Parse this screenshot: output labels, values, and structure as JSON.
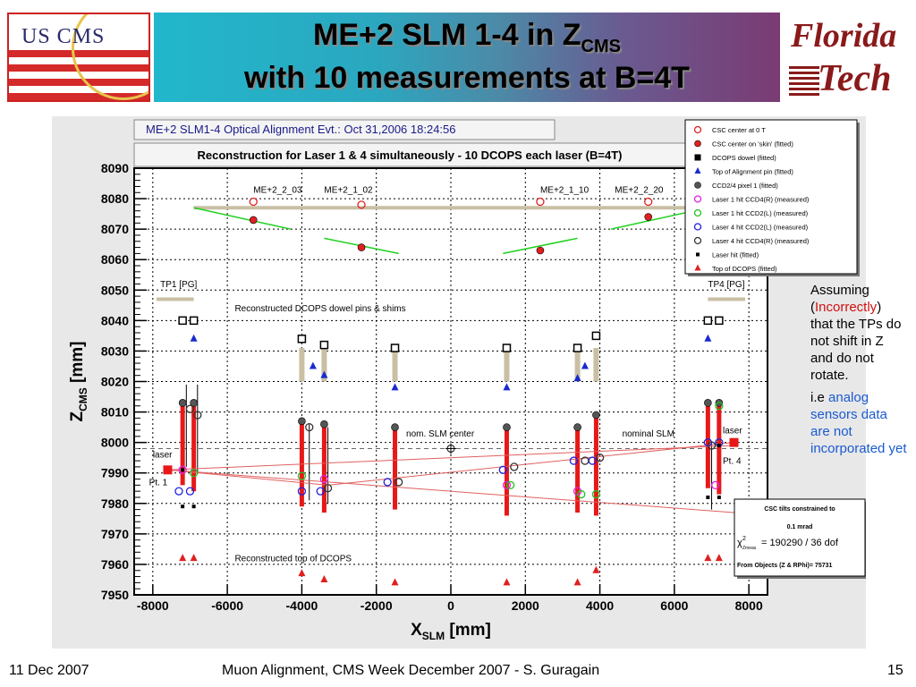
{
  "slide": {
    "title_main": "ME+2 SLM 1-4 in Z",
    "title_sub": "CMS",
    "title_line2": "with 10 measurements at B=4T",
    "logo_left_text": "US CMS",
    "logo_right_line1": "Florida",
    "logo_right_line2": "Tech",
    "side_note": {
      "line1": "Assuming",
      "paren_open": "(",
      "incorrectly": "Incorrectly",
      "paren_close": ")",
      "line3": "that the TPs do not shift in Z and do not rotate.",
      "ie": "i.e ",
      "analog": "analog sensors data are not incorporated yet"
    },
    "footer": {
      "date": "11 Dec 2007",
      "center": "Muon Alignment, CMS Week December 2007  - S. Guragain",
      "page": "15"
    }
  },
  "chart_data": {
    "type": "scatter",
    "header": "ME+2 SLM1-4 Optical Alignment Evt.: Oct 31,2006 18:24:56",
    "title": "Reconstruction for Laser 1 & 4 simultaneously - 10 DCOPS each laser (B=4T)",
    "xlabel": "X",
    "xlabel_sub": "SLM",
    "xlabel_unit": " [mm]",
    "ylabel": "Z",
    "ylabel_sub": "CMS",
    "ylabel_unit": " [mm]",
    "xlim": [
      -8500,
      8500
    ],
    "ylim": [
      7950,
      8090
    ],
    "xticks": [
      -8000,
      -6000,
      -4000,
      -2000,
      0,
      2000,
      4000,
      6000,
      8000
    ],
    "yticks": [
      7950,
      7960,
      7970,
      7980,
      7990,
      8000,
      8010,
      8020,
      8030,
      8040,
      8050,
      8060,
      8070,
      8080,
      8090
    ],
    "grid": true,
    "legend_position": "top-right",
    "legend": [
      {
        "label": "CSC center at 0 T",
        "marker": "open-circle",
        "color": "#e02020"
      },
      {
        "label": "CSC center on 'skin' (fitted)",
        "marker": "filled-circle",
        "color": "#e02020"
      },
      {
        "label": "DCOPS dowel (fitted)",
        "marker": "filled-square",
        "color": "#000000"
      },
      {
        "label": "Top of Alignment pin (fitted)",
        "marker": "triangle",
        "color": "#1a2ad0"
      },
      {
        "label": "CCD2/4 pixel 1 (fitted)",
        "marker": "filled-circle",
        "color": "#555555"
      },
      {
        "label": "Laser 1 hit CCD4(R) (measured)",
        "marker": "open-circle",
        "color": "#e020e0"
      },
      {
        "label": "Laser 1 hit CCD2(L) (measured)",
        "marker": "open-circle",
        "color": "#20c020"
      },
      {
        "label": "Laser 4 hit CCD2(L) (measured)",
        "marker": "open-circle",
        "color": "#2020e0"
      },
      {
        "label": "Laser 4 hit CCD4(R) (measured)",
        "marker": "open-circle",
        "color": "#333333"
      },
      {
        "label": "Laser hit (fitted)",
        "marker": "small-square",
        "color": "#000000"
      },
      {
        "label": "Top of DCOPS (fitted)",
        "marker": "triangle",
        "color": "#e02020"
      }
    ],
    "annotations": {
      "chamber_labels": [
        {
          "text": "ME+2_2_03",
          "x": -5300,
          "y": 8082
        },
        {
          "text": "ME+2_1_02",
          "x": -3400,
          "y": 8082
        },
        {
          "text": "ME+2_1_10",
          "x": 2400,
          "y": 8082
        },
        {
          "text": "ME+2_2_20",
          "x": 4400,
          "y": 8082
        }
      ],
      "tp1": {
        "text": "TP1 [PG]",
        "x": -7800,
        "y": 8051
      },
      "tp4": {
        "text": "TP4 [PG]",
        "x": 6900,
        "y": 8051
      },
      "dowel_label": {
        "text": "Reconstructed DCOPS dowel pins & shims",
        "x": -5800,
        "y": 8043
      },
      "top_label": {
        "text": "Reconstructed top of DCOPS",
        "x": -5800,
        "y": 7961
      },
      "nom_center": {
        "text": "nom. SLM center",
        "x": -1200,
        "y": 8002
      },
      "nominal_slm": {
        "text": "nominal SLM",
        "x": 4600,
        "y": 8002
      },
      "laser_left": {
        "text": "laser",
        "x": -8000,
        "y": 7995
      },
      "laser_right": {
        "text": "laser",
        "x": 7300,
        "y": 8003
      },
      "pt1": {
        "text": "Pt. 1",
        "x": -8100,
        "y": 7986
      },
      "pt4": {
        "text": "Pt. 4",
        "x": 7300,
        "y": 7993
      }
    },
    "stats_box": {
      "line1": "CSC tilts constrained to",
      "line2": "0.1 mrad",
      "chi_label": "χ",
      "chi_sup": "2",
      "chi_sub": "Zmeas",
      "chi_value": "= 190290 / 36 dof",
      "line4": "From Objects (Z & RPhi)= 75731"
    },
    "series": [
      {
        "name": "CSC center at 0 T",
        "points": [
          [
            -5300,
            8079
          ],
          [
            -2400,
            8078
          ],
          [
            2400,
            8079
          ],
          [
            5300,
            8079
          ]
        ]
      },
      {
        "name": "CSC center on 'skin' (fitted)",
        "points": [
          [
            -5300,
            8073
          ],
          [
            -2400,
            8064
          ],
          [
            2400,
            8063
          ],
          [
            5300,
            8074
          ]
        ]
      },
      {
        "name": "DCOPS dowel (fitted)",
        "points": [
          [
            -7200,
            8040
          ],
          [
            -6900,
            8040
          ],
          [
            -4000,
            8034
          ],
          [
            -3400,
            8032
          ],
          [
            -1500,
            8031
          ],
          [
            1500,
            8031
          ],
          [
            3400,
            8031
          ],
          [
            3900,
            8035
          ],
          [
            6900,
            8040
          ],
          [
            7200,
            8040
          ]
        ]
      },
      {
        "name": "Top of Alignment pin (fitted)",
        "points": [
          [
            -6900,
            8034
          ],
          [
            -3700,
            8025
          ],
          [
            -3400,
            8022
          ],
          [
            -1500,
            8018
          ],
          [
            1500,
            8018
          ],
          [
            3400,
            8021
          ],
          [
            3600,
            8025
          ],
          [
            6900,
            8034
          ]
        ]
      },
      {
        "name": "CCD2/4 pixel 1 (fitted)",
        "points": [
          [
            -7200,
            8013
          ],
          [
            -6900,
            8013
          ],
          [
            -4000,
            8007
          ],
          [
            -3400,
            8006
          ],
          [
            -1500,
            8005
          ],
          [
            1500,
            8005
          ],
          [
            3400,
            8005
          ],
          [
            3900,
            8009
          ],
          [
            6900,
            8013
          ],
          [
            7200,
            8013
          ]
        ]
      },
      {
        "name": "Laser 1 hit CCD4(R) (measured)",
        "points": [
          [
            -7200,
            7991
          ],
          [
            -3400,
            7988
          ],
          [
            1500,
            7986
          ],
          [
            3400,
            7984
          ],
          [
            7100,
            7986
          ]
        ]
      },
      {
        "name": "Laser 1 hit CCD2(L) (measured)",
        "points": [
          [
            -6900,
            7990
          ],
          [
            -4000,
            7989
          ],
          [
            1600,
            7986
          ],
          [
            3500,
            7983
          ],
          [
            3900,
            7983
          ],
          [
            7200,
            8012
          ]
        ]
      },
      {
        "name": "Laser 4 hit CCD2(L) (measured)",
        "points": [
          [
            -7300,
            7984
          ],
          [
            -7000,
            7984
          ],
          [
            -4000,
            7984
          ],
          [
            -3500,
            7984
          ],
          [
            -1700,
            7987
          ],
          [
            1400,
            7991
          ],
          [
            3300,
            7994
          ],
          [
            3800,
            7994
          ],
          [
            6900,
            8000
          ],
          [
            7200,
            8000
          ]
        ]
      },
      {
        "name": "Laser 4 hit CCD4(R) (measured)",
        "points": [
          [
            -7000,
            8011
          ],
          [
            -6800,
            8009
          ],
          [
            -3800,
            8005
          ],
          [
            -3300,
            7985
          ],
          [
            -1400,
            7987
          ],
          [
            1700,
            7992
          ],
          [
            3600,
            7994
          ],
          [
            4000,
            7995
          ],
          [
            7000,
            7999
          ]
        ]
      },
      {
        "name": "Top of DCOPS (fitted)",
        "points": [
          [
            -7200,
            7962
          ],
          [
            -6900,
            7962
          ],
          [
            -4000,
            7957
          ],
          [
            -3400,
            7955
          ],
          [
            -1500,
            7954
          ],
          [
            1500,
            7954
          ],
          [
            3400,
            7954
          ],
          [
            3900,
            7958
          ],
          [
            6900,
            7962
          ],
          [
            7200,
            7962
          ]
        ]
      }
    ]
  }
}
